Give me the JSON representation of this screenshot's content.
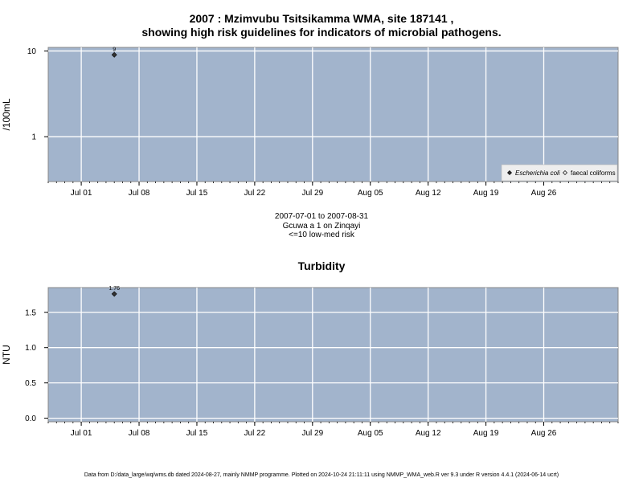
{
  "title": {
    "line1": "2007 : Mzimvubu Tsitsikamma WMA, site 187141 ,",
    "line2": "showing high risk guidelines for indicators of microbial pathogens."
  },
  "info": {
    "date_range": "2007-07-01 to 2007-08-31",
    "site_desc": "Gcuwa a 1 on Zinqayi",
    "risk_note": "<=10 low-med risk"
  },
  "footer": "Data from D:/data_large/wq/wms.db dated 2024-08-27, mainly NMMP programme. Plotted on 2024-10-24 21:11:11 using NMMP_WMA_web.R ver 9.3 under R version 4.4.1 (2024-06-14 ucrt)",
  "colors": {
    "panel_bg": "#a2b4cc",
    "grid": "#ffffff",
    "point": "#333333"
  },
  "chart_data": [
    {
      "type": "scatter",
      "title": "",
      "ylabel": "/100mL",
      "yscale": "log",
      "ylim": [
        0.3,
        11
      ],
      "xlim": [
        "2007-06-27",
        "2007-09-04"
      ],
      "yticks": [
        1,
        10
      ],
      "ytick_labels": [
        "1",
        "10"
      ],
      "xticks": [
        "2007-07-01",
        "2007-07-08",
        "2007-07-15",
        "2007-07-22",
        "2007-07-29",
        "2007-08-05",
        "2007-08-12",
        "2007-08-19",
        "2007-08-26"
      ],
      "xtick_labels": [
        "Jul 01",
        "Jul 08",
        "Jul 15",
        "Jul 22",
        "Jul 29",
        "Aug 05",
        "Aug 12",
        "Aug 19",
        "Aug 26"
      ],
      "grid": true,
      "legend_position": "bottom-right",
      "legend": [
        {
          "name": "Escherichia coli",
          "marker": "filled-diamond"
        },
        {
          "name": "faecal coliforms",
          "marker": "open-diamond"
        }
      ],
      "series": [
        {
          "name": "Escherichia coli",
          "points": [
            {
              "x": "2007-07-05",
              "y": 9,
              "label": "9"
            }
          ]
        },
        {
          "name": "faecal coliforms",
          "points": []
        }
      ]
    },
    {
      "type": "scatter",
      "title": "Turbidity",
      "ylabel": "NTU",
      "yscale": "linear",
      "ylim": [
        -0.05,
        1.85
      ],
      "xlim": [
        "2007-06-27",
        "2007-09-04"
      ],
      "yticks": [
        0,
        0.5,
        1,
        1.5
      ],
      "ytick_labels": [
        "0.0",
        "0.5",
        "1.0",
        "1.5"
      ],
      "xticks": [
        "2007-07-01",
        "2007-07-08",
        "2007-07-15",
        "2007-07-22",
        "2007-07-29",
        "2007-08-05",
        "2007-08-12",
        "2007-08-19",
        "2007-08-26"
      ],
      "xtick_labels": [
        "Jul 01",
        "Jul 08",
        "Jul 15",
        "Jul 22",
        "Jul 29",
        "Aug 05",
        "Aug 12",
        "Aug 19",
        "Aug 26"
      ],
      "grid": true,
      "series": [
        {
          "name": "",
          "points": [
            {
              "x": "2007-07-05",
              "y": 1.76,
              "label": "1.76"
            }
          ]
        }
      ]
    }
  ]
}
